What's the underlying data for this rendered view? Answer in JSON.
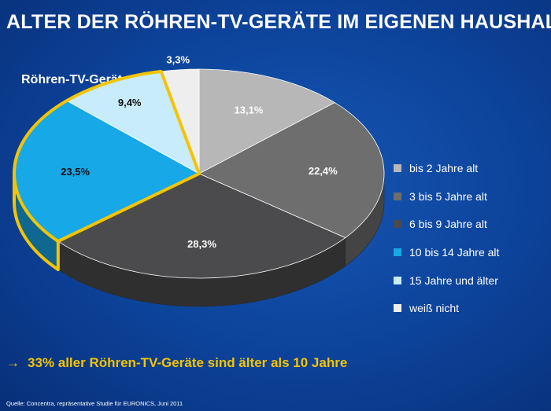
{
  "header": {
    "title": "ALTER DER RÖHREN-TV-GERÄTE IM EIGENEN HAUSHALT"
  },
  "chart_data": {
    "type": "pie",
    "title": "Röhren-TV-Geräte",
    "slices": [
      {
        "label": "bis 2 Jahre alt",
        "value": 13.1,
        "display": "13,1%",
        "color": "#b7b7b7"
      },
      {
        "label": "3 bis 5 Jahre alt",
        "value": 22.4,
        "display": "22,4%",
        "color": "#6e6e6e"
      },
      {
        "label": "6 bis 9 Jahre alt",
        "value": 28.3,
        "display": "28,3%",
        "color": "#4b4b4d"
      },
      {
        "label": "10 bis 14 Jahre alt",
        "value": 23.5,
        "display": "23,5%",
        "color": "#17a8e8"
      },
      {
        "label": "15 Jahre und älter",
        "value": 9.4,
        "display": "9,4%",
        "color": "#c8ecfb"
      },
      {
        "label": "weiß nicht",
        "value": 3.3,
        "display": "3,3%",
        "color": "#eeeeee"
      }
    ],
    "highlight_color": "#f5c400",
    "legend_position": "right"
  },
  "takeaway": {
    "arrow": "→",
    "text": "33% aller Röhren-TV-Geräte sind älter als 10 Jahre"
  },
  "footer": {
    "source": "Quelle: Concentra, repräsentative Studie für EURONICS, Juni 2011"
  }
}
